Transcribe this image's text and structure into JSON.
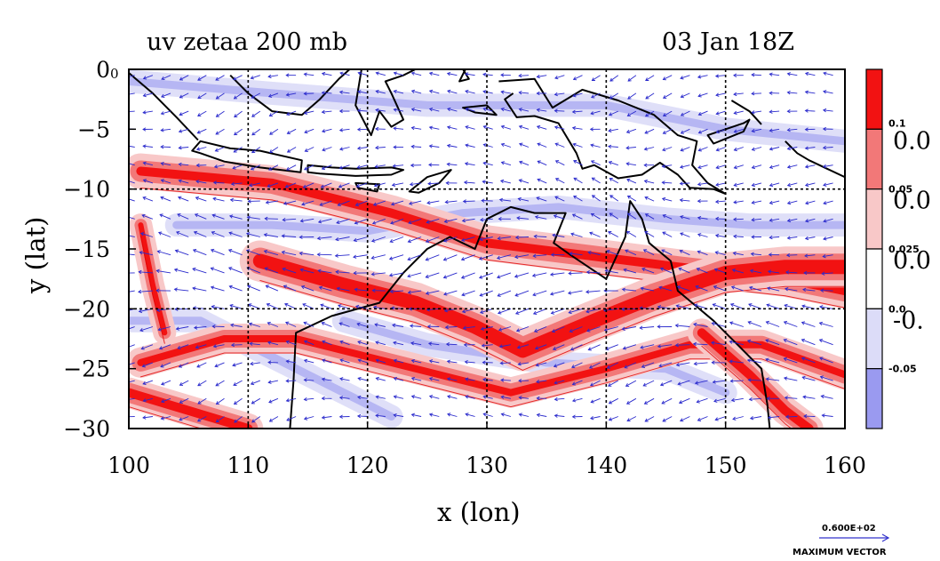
{
  "title_left": "uv zetaa 200 mb",
  "title_right": "03 Jan 18Z",
  "corner_label": "0",
  "chart_data": {
    "type": "heatmap",
    "xlabel": "x (lon)",
    "ylabel": "y (lat)",
    "xlim": [
      100,
      160
    ],
    "ylim": [
      -30,
      0
    ],
    "xticks": [
      "100",
      "110",
      "120",
      "130",
      "140",
      "150",
      "160"
    ],
    "yticks": [
      "0",
      "−5",
      "−10",
      "−15",
      "−20",
      "−25",
      "−30"
    ],
    "grid": true,
    "overlay": "wind vectors (u,v)",
    "colorbar": {
      "levels_small": [
        "0.1",
        "0.05",
        "0.025",
        "0.0",
        "-0.05"
      ],
      "levels_big": [
        "0.0",
        "0.0",
        "0.0",
        "-0."
      ],
      "colors": [
        "#f21212",
        "#f27878",
        "#f8c8c8",
        "#ffffff",
        "#dcdcf8",
        "#9a9af0"
      ]
    },
    "max_vector_value": "0.600E+02",
    "max_vector_label": "MAXIMUM VECTOR",
    "features": {
      "high_vorticity_bands": [
        {
          "name": "northern band",
          "points": [
            [
              101,
              -8.5
            ],
            [
              112,
              -9.5
            ],
            [
              122,
              -12
            ],
            [
              130,
              -14.5
            ],
            [
              138,
              -15.5
            ],
            [
              146,
              -16.5
            ],
            [
              155,
              -17.5
            ],
            [
              160,
              -18.5
            ]
          ]
        },
        {
          "name": "central jet core",
          "points": [
            [
              111,
              -16
            ],
            [
              118,
              -18
            ],
            [
              124,
              -19.5
            ],
            [
              129,
              -21.5
            ],
            [
              133,
              -23.5
            ],
            [
              139,
              -21
            ],
            [
              144,
              -19
            ],
            [
              150,
              -17
            ],
            [
              155,
              -16.5
            ],
            [
              160,
              -16.5
            ]
          ]
        },
        {
          "name": "southern band",
          "points": [
            [
              101,
              -24.5
            ],
            [
              108,
              -22.5
            ],
            [
              114,
              -22.5
            ],
            [
              120,
              -24
            ],
            [
              126,
              -25.5
            ],
            [
              132,
              -27
            ],
            [
              140,
              -25
            ],
            [
              147,
              -23
            ],
            [
              153,
              -23
            ],
            [
              160,
              -25.5
            ]
          ]
        },
        {
          "name": "southwest band",
          "points": [
            [
              100,
              -27
            ],
            [
              105,
              -28.5
            ],
            [
              110,
              -30
            ]
          ]
        },
        {
          "name": "southeast band",
          "points": [
            [
              148,
              -22
            ],
            [
              152,
              -25.5
            ],
            [
              155,
              -28.5
            ],
            [
              157,
              -30
            ]
          ]
        },
        {
          "name": "western arc",
          "points": [
            [
              101,
              -13
            ],
            [
              102,
              -18
            ],
            [
              103,
              -22
            ]
          ]
        }
      ],
      "negative_regions": [
        {
          "name": "equatorial belt",
          "points": [
            [
              100,
              -1
            ],
            [
              112,
              -2
            ],
            [
              125,
              -3
            ],
            [
              140,
              -3
            ],
            [
              150,
              -5
            ],
            [
              160,
              -6
            ]
          ]
        },
        {
          "name": "mid belt",
          "points": [
            [
              104,
              -13
            ],
            [
              112,
              -13
            ],
            [
              120,
              -13.5
            ],
            [
              128,
              -12
            ],
            [
              136,
              -11.5
            ],
            [
              145,
              -12.5
            ],
            [
              152,
              -13
            ],
            [
              160,
              -13
            ]
          ]
        },
        {
          "name": "southwest belt",
          "points": [
            [
              100,
              -21
            ],
            [
              106,
              -21
            ],
            [
              112,
              -24
            ],
            [
              118,
              -27
            ],
            [
              122,
              -29
            ]
          ]
        },
        {
          "name": "southern belt",
          "points": [
            [
              118,
              -21
            ],
            [
              125,
              -23
            ],
            [
              135,
              -24.5
            ],
            [
              145,
              -25
            ],
            [
              150,
              -27
            ]
          ]
        }
      ],
      "coastlines": [
        {
          "name": "Australia",
          "closed": true,
          "points": [
            [
              113.5,
              -30
            ],
            [
              113.8,
              -26
            ],
            [
              114,
              -22
            ],
            [
              117,
              -20.6
            ],
            [
              121,
              -19.5
            ],
            [
              123,
              -17
            ],
            [
              125,
              -15
            ],
            [
              126.9,
              -14
            ],
            [
              129,
              -15
            ],
            [
              130,
              -12.5
            ],
            [
              132,
              -11.5
            ],
            [
              134,
              -12
            ],
            [
              136.6,
              -12
            ],
            [
              135.6,
              -14.5
            ],
            [
              137,
              -15.5
            ],
            [
              140,
              -17.5
            ],
            [
              141.6,
              -14
            ],
            [
              142,
              -11
            ],
            [
              143,
              -12.5
            ],
            [
              143.6,
              -14.5
            ],
            [
              145.4,
              -16
            ],
            [
              146,
              -18.5
            ],
            [
              149,
              -21
            ],
            [
              151,
              -23
            ],
            [
              153,
              -25
            ],
            [
              153.5,
              -28
            ],
            [
              153.7,
              -30
            ]
          ]
        },
        {
          "name": "Sumatra",
          "closed": false,
          "points": [
            [
              100,
              -0.3
            ],
            [
              102,
              -2
            ],
            [
              104,
              -4
            ],
            [
              105.8,
              -5.9
            ]
          ]
        },
        {
          "name": "Borneo",
          "closed": false,
          "points": [
            [
              108.5,
              -0.5
            ],
            [
              110,
              -2
            ],
            [
              112,
              -3.5
            ],
            [
              114.5,
              -3.8
            ],
            [
              116,
              -2.5
            ],
            [
              117.6,
              -0.8
            ],
            [
              118.5,
              0
            ]
          ]
        },
        {
          "name": "Java",
          "closed": true,
          "points": [
            [
              106,
              -6
            ],
            [
              108.5,
              -6.6
            ],
            [
              111,
              -6.8
            ],
            [
              114.5,
              -7.6
            ],
            [
              114.4,
              -8.6
            ],
            [
              111,
              -8.2
            ],
            [
              108,
              -7.7
            ],
            [
              106,
              -7
            ],
            [
              105.3,
              -6.8
            ]
          ]
        },
        {
          "name": "Bali to Flores",
          "closed": true,
          "points": [
            [
              115,
              -8
            ],
            [
              117,
              -8.2
            ],
            [
              119,
              -8.3
            ],
            [
              122,
              -8.2
            ],
            [
              123,
              -8.4
            ],
            [
              122,
              -8.8
            ],
            [
              119,
              -8.9
            ],
            [
              116,
              -8.7
            ],
            [
              115,
              -8.6
            ]
          ]
        },
        {
          "name": "Sumba",
          "closed": true,
          "points": [
            [
              119,
              -9.5
            ],
            [
              121,
              -9.6
            ],
            [
              120.8,
              -10.2
            ],
            [
              119.2,
              -9.9
            ]
          ]
        },
        {
          "name": "Timor",
          "closed": true,
          "points": [
            [
              123.5,
              -10.2
            ],
            [
              125,
              -9
            ],
            [
              127,
              -8.4
            ],
            [
              126,
              -9.5
            ],
            [
              124.3,
              -10.3
            ]
          ]
        },
        {
          "name": "Sulawesi",
          "closed": false,
          "points": [
            [
              119.5,
              0
            ],
            [
              119,
              -3
            ],
            [
              120.3,
              -5.5
            ],
            [
              121,
              -3.5
            ],
            [
              122,
              -4.8
            ],
            [
              123,
              -4.2
            ],
            [
              122,
              -2
            ],
            [
              121.5,
              -1
            ],
            [
              123,
              -0.5
            ],
            [
              124,
              0
            ]
          ]
        },
        {
          "name": "Halmahera",
          "closed": false,
          "points": [
            [
              128,
              0
            ],
            [
              128.5,
              -0.8
            ],
            [
              127.7,
              -1
            ],
            [
              128.2,
              0
            ]
          ]
        },
        {
          "name": "Seram",
          "closed": true,
          "points": [
            [
              128,
              -3.2
            ],
            [
              130,
              -3
            ],
            [
              130.8,
              -3.8
            ],
            [
              129,
              -3.6
            ]
          ]
        },
        {
          "name": "New Guinea",
          "closed": false,
          "points": [
            [
              131,
              -1
            ],
            [
              134,
              -0.8
            ],
            [
              135.5,
              -3.2
            ],
            [
              138,
              -1.7
            ],
            [
              141,
              -2.6
            ],
            [
              144,
              -3.8
            ],
            [
              146,
              -5.5
            ],
            [
              147.6,
              -6
            ],
            [
              147.2,
              -8
            ],
            [
              148.5,
              -9.5
            ],
            [
              150,
              -10.4
            ],
            [
              149,
              -10
            ],
            [
              147,
              -9.9
            ],
            [
              146,
              -8.8
            ],
            [
              144.5,
              -7.8
            ],
            [
              143,
              -8.8
            ],
            [
              141,
              -9.1
            ],
            [
              139,
              -8
            ],
            [
              138,
              -8.3
            ],
            [
              137.5,
              -7
            ],
            [
              136,
              -4.5
            ],
            [
              134,
              -3.9
            ],
            [
              132.5,
              -4
            ],
            [
              131.5,
              -2.5
            ],
            [
              132.2,
              -2
            ]
          ]
        },
        {
          "name": "New Britain",
          "closed": true,
          "points": [
            [
              148.5,
              -5.5
            ],
            [
              150,
              -5
            ],
            [
              151.5,
              -4.5
            ],
            [
              152,
              -4.2
            ],
            [
              151.5,
              -5.2
            ],
            [
              150,
              -5.8
            ],
            [
              149,
              -6.2
            ]
          ]
        },
        {
          "name": "New Ireland",
          "closed": false,
          "points": [
            [
              150.5,
              -2.6
            ],
            [
              152,
              -3.5
            ],
            [
              153,
              -4.6
            ]
          ]
        },
        {
          "name": "Solomons",
          "closed": false,
          "points": [
            [
              155,
              -6
            ],
            [
              156,
              -7
            ],
            [
              157,
              -7.6
            ],
            [
              158.5,
              -8.3
            ],
            [
              160,
              -9
            ]
          ]
        }
      ]
    }
  }
}
